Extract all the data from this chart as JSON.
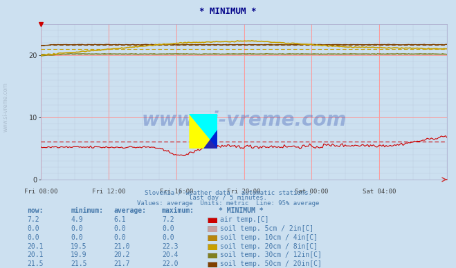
{
  "title": "* MINIMUM *",
  "background_color": "#cce0f0",
  "plot_bg_color": "#cce0f0",
  "xlabel_ticks": [
    "Fri 08:00",
    "Fri 12:00",
    "Fri 16:00",
    "Fri 20:00",
    "Sat 00:00",
    "Sat 04:00"
  ],
  "ylim": [
    0,
    25
  ],
  "yticks": [
    0,
    10,
    20
  ],
  "subtitle1": "Slovenia / weather data - automatic stations.",
  "subtitle2": "last day / 5 minutes.",
  "subtitle3": "Values: average  Units: metric  Line: 95% average",
  "watermark": "www.si-vreme.com",
  "table_headers": [
    "now:",
    "minimum:",
    "average:",
    "maximum:",
    "* MINIMUM *"
  ],
  "table_data": [
    [
      "7.2",
      "4.9",
      "6.1",
      "7.2",
      "air temp.[C]",
      "#cc0000"
    ],
    [
      "0.0",
      "0.0",
      "0.0",
      "0.0",
      "soil temp. 5cm / 2in[C]",
      "#c8a0a0"
    ],
    [
      "0.0",
      "0.0",
      "0.0",
      "0.0",
      "soil temp. 10cm / 4in[C]",
      "#b8860b"
    ],
    [
      "20.1",
      "19.5",
      "21.0",
      "22.3",
      "soil temp. 20cm / 8in[C]",
      "#c8a000"
    ],
    [
      "20.1",
      "19.9",
      "20.2",
      "20.4",
      "soil temp. 30cm / 12in[C]",
      "#808020"
    ],
    [
      "21.5",
      "21.5",
      "21.7",
      "22.0",
      "soil temp. 50cm / 20in[C]",
      "#804000"
    ]
  ],
  "air_avg": 6.1,
  "soil20_avg": 21.0,
  "soil30_avg": 20.2,
  "soil50_avg": 21.7,
  "n_points": 288,
  "left_label": "www.si-vreme.com"
}
